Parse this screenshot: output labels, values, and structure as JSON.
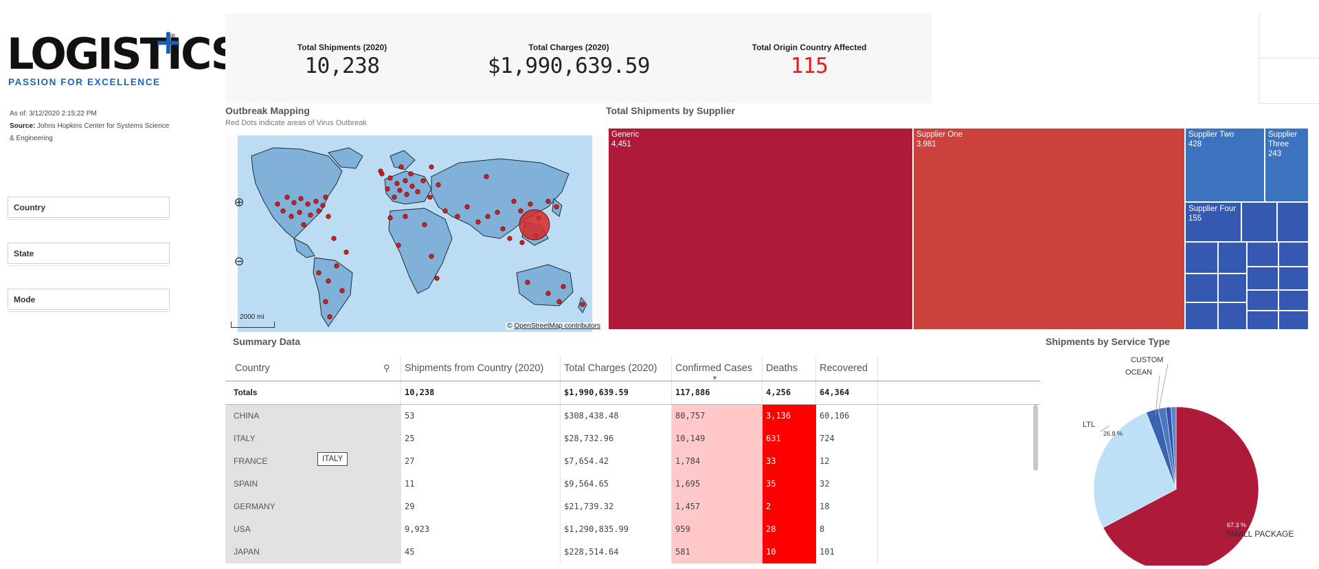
{
  "logo": {
    "word": "LOGISTICS",
    "tagline": "PASSION FOR EXCELLENCE"
  },
  "asof": {
    "date_label": "As of: 3/12/2020 2:15:22 PM",
    "source_label": "Source:",
    "source_text": "Johns Hopkins Center for Systems Science & Engineering"
  },
  "filters": [
    {
      "label": "Country"
    },
    {
      "label": "State"
    },
    {
      "label": "Mode"
    }
  ],
  "kpis": [
    {
      "label": "Total Shipments (2020)",
      "value": "10,238"
    },
    {
      "label": "Total Charges (2020)",
      "value": "$1,990,639.59"
    },
    {
      "label": "Total Origin Country Affected",
      "value": "115",
      "color": "#e8191c"
    }
  ],
  "map": {
    "title": "Outbreak Mapping",
    "subtitle": "Red Dots indicate areas of Virus Outbreak",
    "zoom_in": "⊕",
    "zoom_out": "⊖",
    "scale": "2000 mi",
    "attribution_prefix": "©",
    "attribution_link": "OpenStreetMap contributors"
  },
  "treemap": {
    "title": "Total Shipments by Supplier",
    "tiles": [
      {
        "name": "Generic",
        "value": "4,451",
        "color": "#ad1a3a"
      },
      {
        "name": "Supplier One",
        "value": "3,981",
        "color": "#ca423b"
      },
      {
        "name": "Supplier Two",
        "value": "428",
        "color": "#3b73bf"
      },
      {
        "name": "Supplier Three",
        "value": "243",
        "color": "#3b73bf"
      },
      {
        "name": "Supplier Four",
        "value": "155",
        "color": "#3558b0"
      }
    ]
  },
  "table": {
    "title": "Summary Data",
    "columns": [
      "Country",
      "Shipments from Country (2020)",
      "Total Charges (2020)",
      "Confirmed Cases",
      "Deaths",
      "Recovered"
    ],
    "totals": {
      "label": "Totals",
      "shipments": "10,238",
      "charges": "$1,990,639.59",
      "confirmed": "117,886",
      "deaths": "4,256",
      "recovered": "64,364"
    },
    "rows": [
      {
        "country": "CHINA",
        "shipments": "53",
        "charges": "$308,438.48",
        "confirmed": "80,757",
        "deaths": "3,136",
        "recovered": "60,106"
      },
      {
        "country": "ITALY",
        "shipments": "25",
        "charges": "$28,732.96",
        "confirmed": "10,149",
        "deaths": "631",
        "recovered": "724"
      },
      {
        "country": "FRANCE",
        "shipments": "27",
        "charges": "$7,654.42",
        "confirmed": "1,784",
        "deaths": "33",
        "recovered": "12"
      },
      {
        "country": "SPAIN",
        "shipments": "11",
        "charges": "$9,564.65",
        "confirmed": "1,695",
        "deaths": "35",
        "recovered": "32"
      },
      {
        "country": "GERMANY",
        "shipments": "29",
        "charges": "$21,739.32",
        "confirmed": "1,457",
        "deaths": "2",
        "recovered": "18"
      },
      {
        "country": "USA",
        "shipments": "9,923",
        "charges": "$1,290,835.99",
        "confirmed": "959",
        "deaths": "28",
        "recovered": "8"
      },
      {
        "country": "JAPAN",
        "shipments": "45",
        "charges": "$228,514.64",
        "confirmed": "581",
        "deaths": "10",
        "recovered": "101"
      }
    ],
    "tooltip": "ITALY",
    "colors": {
      "confirmed_bg": "#ffc9c9",
      "deaths_bg": "#ff0000"
    }
  },
  "chart_data": {
    "type": "pie",
    "title": "Shipments by Service Type",
    "slices": [
      {
        "label": "SMALL PACKAGE",
        "percent": 67.3,
        "value_label": "67.3 %",
        "color": "#ad1a3a"
      },
      {
        "label": "LTL",
        "percent": 26.8,
        "value_label": "26.8 %",
        "color": "#bde0f6"
      },
      {
        "label": "OCEAN",
        "percent": 2.4,
        "color": "#3a62b2"
      },
      {
        "label": "CUSTOM",
        "percent": 1.5,
        "color": "#4c77c2"
      },
      {
        "percent": 1.0,
        "color": "#2f55a5"
      },
      {
        "percent": 1.0,
        "color": "#5b86cc"
      }
    ]
  }
}
